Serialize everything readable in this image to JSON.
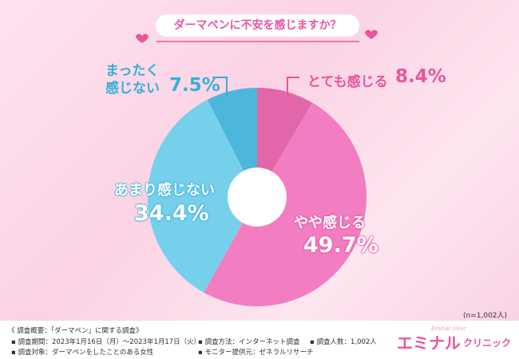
{
  "chart_data": {
    "type": "donut",
    "title": "ダーマペンに不安を感じますか？",
    "note": "(n=1,002人)",
    "categories": [
      "とても感じる",
      "やや感じる",
      "あまり感じない",
      "まったく感じない"
    ],
    "values": [
      8.4,
      49.7,
      34.4,
      7.5
    ],
    "value_labels": [
      "8.4%",
      "49.7%",
      "34.4%",
      "7.5%"
    ],
    "colors": [
      "#e367a8",
      "#f27dc1",
      "#76d0ec",
      "#4db6dc"
    ]
  },
  "footer": {
    "heading": "《 調査概要：「ダーマペン」に関する調査》",
    "items": [
      "調査期間：2023年1月16日（月）〜2023年1月17日（火）",
      "調査方法：インターネット調査",
      "調査人数：1,002人",
      "調査対象：ダーマペンをしたことのある女性",
      "モニター提供元：ゼネラルリサーチ"
    ],
    "logo": {
      "main": "エミナル",
      "sub": "クリニック",
      "small": "Eminal clinic"
    }
  }
}
